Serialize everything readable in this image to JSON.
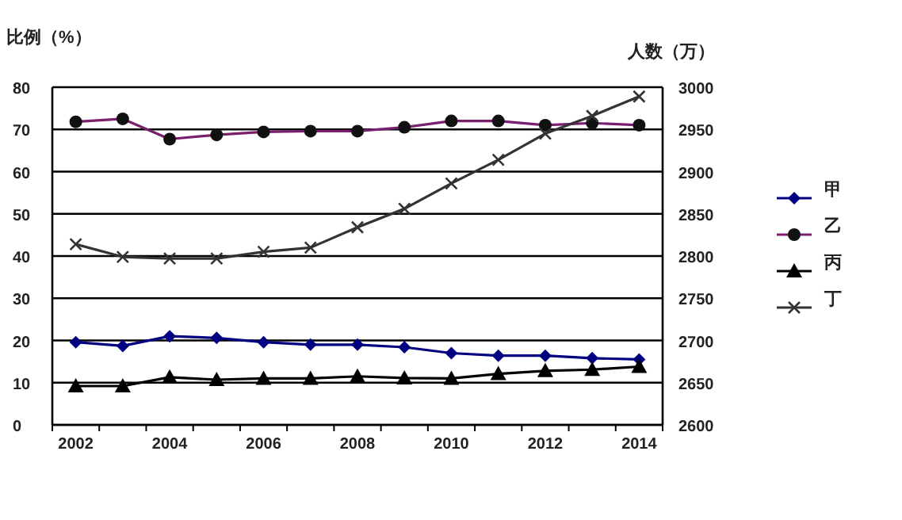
{
  "chart_data": {
    "type": "line",
    "ylabel": "比例（%）",
    "y2label": "人数（万）",
    "categories": [
      "2002",
      null,
      "2004",
      null,
      "2006",
      null,
      "2008",
      null,
      "2010",
      null,
      "2012",
      null,
      "2014"
    ],
    "ylim": [
      0,
      80
    ],
    "yticks": [
      0,
      10,
      20,
      30,
      40,
      50,
      60,
      70,
      80
    ],
    "y2lim": [
      2600,
      3000
    ],
    "y2ticks": [
      2600,
      2650,
      2700,
      2750,
      2800,
      2850,
      2900,
      2950,
      3000
    ],
    "grid": "y",
    "legend": "right",
    "line_style": "solid",
    "series": [
      {
        "name": "甲",
        "color": "#000080",
        "marker": "diamond",
        "values": [
          19.6,
          18.7,
          21,
          20.6,
          19.6,
          19,
          19,
          18.4,
          17,
          16.4,
          16.4,
          15.8,
          15.5
        ]
      },
      {
        "name": "乙",
        "color": "#7a1f6e",
        "marker": "circle",
        "values": [
          71.8,
          72.5,
          67.7,
          68.7,
          69.4,
          69.6,
          69.6,
          70.5,
          72,
          72,
          71,
          71.5,
          71
        ]
      },
      {
        "name": "丙",
        "color": "#000000",
        "marker": "triangle",
        "values": [
          9.2,
          9.2,
          11.3,
          10.7,
          11,
          11,
          11.5,
          11.1,
          11,
          12.1,
          12.8,
          13.1,
          13.8
        ]
      },
      {
        "name": "丁",
        "color": "#333333",
        "marker": "cross",
        "axis": "y2",
        "values": [
          2814,
          2799,
          2797,
          2797,
          2805,
          2810,
          2834,
          2856,
          2886,
          2914,
          2945,
          2966,
          2989
        ]
      }
    ]
  }
}
